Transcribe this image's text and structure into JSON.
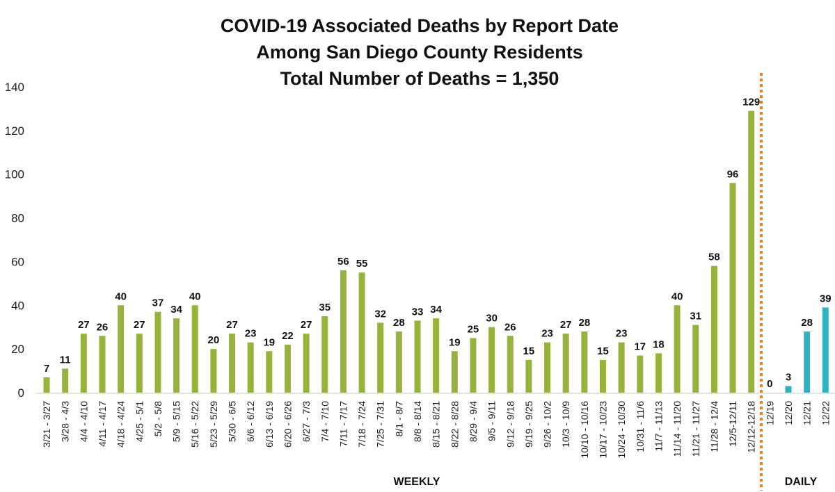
{
  "chart_data": {
    "type": "bar",
    "title": [
      "COVID-19 Associated Deaths by Report Date",
      "Among San Diego County Residents",
      "Total Number of Deaths = 1,350"
    ],
    "xlabel": "",
    "ylabel": "",
    "ylim": [
      0,
      140
    ],
    "yticks": [
      0,
      20,
      40,
      60,
      80,
      100,
      120,
      140
    ],
    "grid": false,
    "sections": [
      {
        "name": "WEEKLY",
        "color": "#96b33b"
      },
      {
        "name": "DAILY",
        "color": "#2fb3c2"
      }
    ],
    "divider_color": "#ee7d25",
    "categories": [
      "3/21 - 3/27",
      "3/28 - 4/3",
      "4/4 - 4/10",
      "4/11 - 4/17",
      "4/18 - 4/24",
      "4/25 - 5/1",
      "5/2 - 5/8",
      "5/9 - 5/15",
      "5/16 - 5/22",
      "5/23 - 5/29",
      "5/30 - 6/5",
      "6/6 - 6/12",
      "6/13 - 6/19",
      "6/20 - 6/26",
      "6/27 - 7/3",
      "7/4 - 7/10",
      "7/11 - 7/17",
      "7/18 - 7/24",
      "7/25 - 7/31",
      "8/1 - 8/7",
      "8/8 - 8/14",
      "8/15 - 8/21",
      "8/22 - 8/28",
      "8/29 - 9/4",
      "9/5 - 9/11",
      "9/12 - 9/18",
      "9/19 - 9/25",
      "9/26 - 10/2",
      "10/3 - 10/9",
      "10/10 - 10/16",
      "10/17 - 10/23",
      "10/24 - 10/30",
      "10/31 - 11/6",
      "11/7 - 11/13",
      "11/14 - 11/20",
      "11/21 - 11/27",
      "11/28 - 12/4",
      "12/5-12/11",
      "12/12-12/18",
      "12/19",
      "12/20",
      "12/21",
      "12/22"
    ],
    "values": [
      7,
      11,
      27,
      26,
      40,
      27,
      37,
      34,
      40,
      20,
      27,
      23,
      19,
      22,
      27,
      35,
      56,
      55,
      32,
      28,
      33,
      34,
      19,
      25,
      30,
      26,
      15,
      23,
      27,
      28,
      15,
      23,
      17,
      18,
      40,
      31,
      58,
      96,
      129,
      0,
      3,
      28,
      39
    ],
    "series_index": [
      0,
      0,
      0,
      0,
      0,
      0,
      0,
      0,
      0,
      0,
      0,
      0,
      0,
      0,
      0,
      0,
      0,
      0,
      0,
      0,
      0,
      0,
      0,
      0,
      0,
      0,
      0,
      0,
      0,
      0,
      0,
      0,
      0,
      0,
      0,
      0,
      0,
      0,
      0,
      1,
      1,
      1,
      1
    ]
  }
}
